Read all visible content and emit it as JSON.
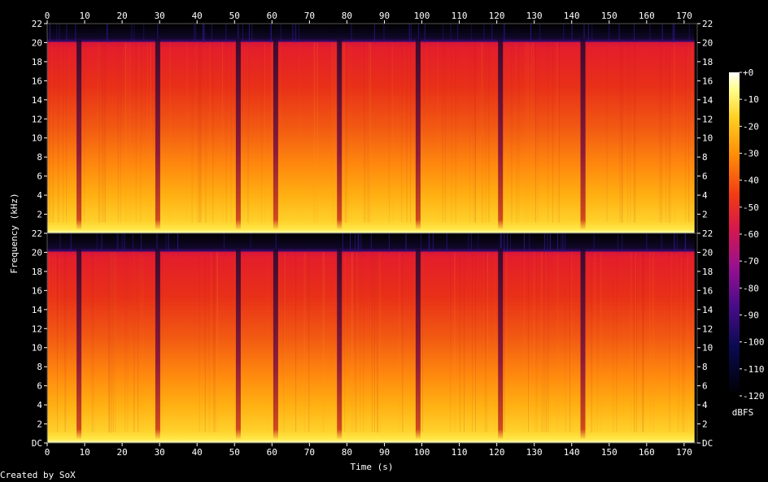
{
  "chart_data": {
    "type": "heatmap",
    "subtype": "spectrogram",
    "xlabel": "Time (s)",
    "ylabel": "Frequency (kHz)",
    "x_ticks": [
      0,
      10,
      20,
      30,
      40,
      50,
      60,
      70,
      80,
      90,
      100,
      110,
      120,
      130,
      140,
      150,
      160,
      170
    ],
    "xlim": [
      0,
      173.5
    ],
    "y_ticks": [
      "DC",
      "2",
      "4",
      "6",
      "8",
      "10",
      "12",
      "14",
      "16",
      "18",
      "20",
      "22"
    ],
    "ylim_khz": [
      0,
      22
    ],
    "channels": 2,
    "cutoff_khz": 20,
    "colorbar": {
      "label": "dBFS",
      "ticks": [
        "+0",
        "-10",
        "-20",
        "-30",
        "-40",
        "-50",
        "-60",
        "-70",
        "-80",
        "-90",
        "-100",
        "-110",
        "-120"
      ],
      "range_db": [
        -120,
        0
      ]
    },
    "track_gaps_s": [
      8.5,
      29.5,
      51,
      61,
      78,
      99,
      121,
      143
    ]
  },
  "credit": "Created by SoX"
}
